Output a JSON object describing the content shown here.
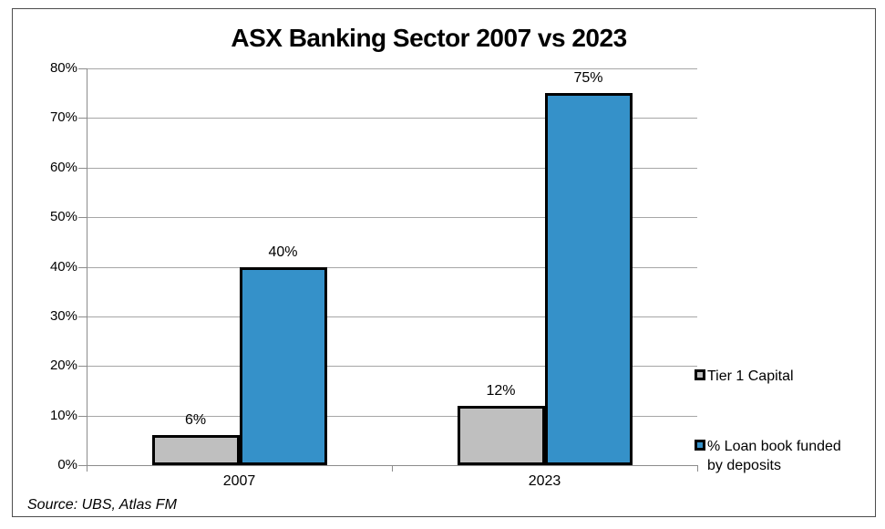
{
  "chart_data": {
    "type": "bar",
    "title": "ASX Banking Sector 2007 vs 2023",
    "categories": [
      "2007",
      "2023"
    ],
    "series": [
      {
        "name": "Tier 1 Capital",
        "values": [
          6,
          12
        ],
        "labels": [
          "6%",
          "12%"
        ],
        "color": "#bfbfbf"
      },
      {
        "name": "% Loan book funded by deposits",
        "values": [
          40,
          75
        ],
        "labels": [
          "40%",
          "75%"
        ],
        "color": "#3591c9"
      }
    ],
    "y_axis": {
      "min": 0,
      "max": 80,
      "step": 10,
      "suffix": "%",
      "tick_labels": [
        "0%",
        "10%",
        "20%",
        "30%",
        "40%",
        "50%",
        "60%",
        "70%",
        "80%"
      ]
    },
    "grid": true,
    "legend_position": "right",
    "bar_border_color": "#000000",
    "source": "Source: UBS, Atlas FM"
  },
  "colors": {
    "axis": "#8c8c8c",
    "gridline": "#a6a6a6",
    "frame_border": "#4d4d4d",
    "background": "#ffffff"
  }
}
